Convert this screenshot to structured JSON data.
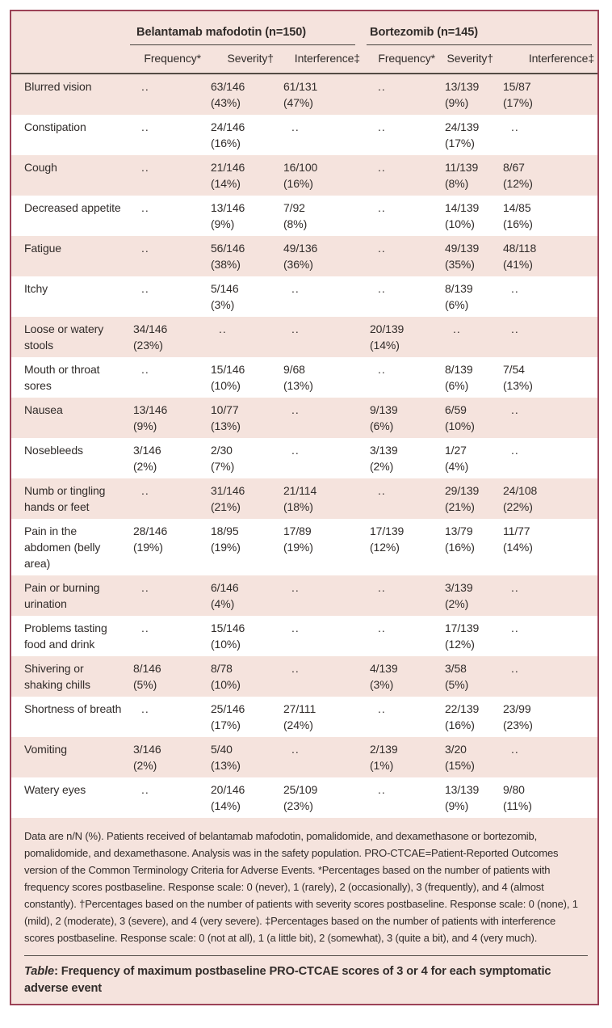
{
  "colors": {
    "frame_border": "#9c4257",
    "row_pink": "#f5e3dd",
    "row_white": "#ffffff",
    "rule_dark": "#544b44"
  },
  "table": {
    "group_headers": [
      {
        "label": "Belantamab mafodotin (n=150)"
      },
      {
        "label": "Bortezomib (n=145)"
      }
    ],
    "column_headers": [
      "Frequency*",
      "Severity†",
      "Interference‡",
      "Frequency*",
      "Severity†",
      "Interference‡"
    ],
    "no_data_marker": "..",
    "rows": [
      {
        "label": "Blurred vision",
        "cells": [
          {
            "v": "..",
            "p": ""
          },
          {
            "v": "63/146",
            "p": "(43%)"
          },
          {
            "v": "61/131",
            "p": "(47%)"
          },
          {
            "v": "..",
            "p": ""
          },
          {
            "v": "13/139",
            "p": "(9%)"
          },
          {
            "v": "15/87",
            "p": "(17%)"
          }
        ]
      },
      {
        "label": "Constipation",
        "cells": [
          {
            "v": "..",
            "p": ""
          },
          {
            "v": "24/146",
            "p": "(16%)"
          },
          {
            "v": "..",
            "p": ""
          },
          {
            "v": "..",
            "p": ""
          },
          {
            "v": "24/139",
            "p": "(17%)"
          },
          {
            "v": "..",
            "p": ""
          }
        ]
      },
      {
        "label": "Cough",
        "cells": [
          {
            "v": "..",
            "p": ""
          },
          {
            "v": "21/146",
            "p": "(14%)"
          },
          {
            "v": "16/100",
            "p": "(16%)"
          },
          {
            "v": "..",
            "p": ""
          },
          {
            "v": "11/139",
            "p": "(8%)"
          },
          {
            "v": "8/67",
            "p": "(12%)"
          }
        ]
      },
      {
        "label": "Decreased appetite",
        "cells": [
          {
            "v": "..",
            "p": ""
          },
          {
            "v": "13/146",
            "p": "(9%)"
          },
          {
            "v": "7/92",
            "p": "(8%)"
          },
          {
            "v": "..",
            "p": ""
          },
          {
            "v": "14/139",
            "p": "(10%)"
          },
          {
            "v": "14/85",
            "p": "(16%)"
          }
        ]
      },
      {
        "label": "Fatigue",
        "cells": [
          {
            "v": "..",
            "p": ""
          },
          {
            "v": "56/146",
            "p": "(38%)"
          },
          {
            "v": "49/136",
            "p": "(36%)"
          },
          {
            "v": "..",
            "p": ""
          },
          {
            "v": "49/139",
            "p": "(35%)"
          },
          {
            "v": "48/118",
            "p": "(41%)"
          }
        ]
      },
      {
        "label": "Itchy",
        "cells": [
          {
            "v": "..",
            "p": ""
          },
          {
            "v": "5/146",
            "p": "(3%)"
          },
          {
            "v": "..",
            "p": ""
          },
          {
            "v": "..",
            "p": ""
          },
          {
            "v": "8/139",
            "p": "(6%)"
          },
          {
            "v": "..",
            "p": ""
          }
        ]
      },
      {
        "label": "Loose or watery stools",
        "cells": [
          {
            "v": "34/146",
            "p": "(23%)"
          },
          {
            "v": "..",
            "p": ""
          },
          {
            "v": "..",
            "p": ""
          },
          {
            "v": "20/139",
            "p": "(14%)"
          },
          {
            "v": "..",
            "p": ""
          },
          {
            "v": "..",
            "p": ""
          }
        ]
      },
      {
        "label": "Mouth or throat sores",
        "cells": [
          {
            "v": "..",
            "p": ""
          },
          {
            "v": "15/146",
            "p": "(10%)"
          },
          {
            "v": "9/68",
            "p": "(13%)"
          },
          {
            "v": "..",
            "p": ""
          },
          {
            "v": "8/139",
            "p": "(6%)"
          },
          {
            "v": "7/54",
            "p": "(13%)"
          }
        ]
      },
      {
        "label": "Nausea",
        "cells": [
          {
            "v": "13/146",
            "p": "(9%)"
          },
          {
            "v": "10/77",
            "p": "(13%)"
          },
          {
            "v": "..",
            "p": ""
          },
          {
            "v": "9/139",
            "p": "(6%)"
          },
          {
            "v": "6/59",
            "p": "(10%)"
          },
          {
            "v": "..",
            "p": ""
          }
        ]
      },
      {
        "label": "Nosebleeds",
        "cells": [
          {
            "v": "3/146",
            "p": "(2%)"
          },
          {
            "v": "2/30",
            "p": "(7%)"
          },
          {
            "v": "..",
            "p": ""
          },
          {
            "v": "3/139",
            "p": "(2%)"
          },
          {
            "v": "1/27",
            "p": "(4%)"
          },
          {
            "v": "..",
            "p": ""
          }
        ]
      },
      {
        "label": "Numb or tingling hands or feet",
        "cells": [
          {
            "v": "..",
            "p": ""
          },
          {
            "v": "31/146",
            "p": "(21%)"
          },
          {
            "v": "21/114",
            "p": "(18%)"
          },
          {
            "v": "..",
            "p": ""
          },
          {
            "v": "29/139",
            "p": "(21%)"
          },
          {
            "v": "24/108",
            "p": "(22%)"
          }
        ]
      },
      {
        "label": "Pain in the abdomen (belly area)",
        "cells": [
          {
            "v": "28/146",
            "p": "(19%)"
          },
          {
            "v": "18/95",
            "p": "(19%)"
          },
          {
            "v": "17/89",
            "p": "(19%)"
          },
          {
            "v": "17/139",
            "p": "(12%)"
          },
          {
            "v": "13/79",
            "p": "(16%)"
          },
          {
            "v": "11/77",
            "p": "(14%)"
          }
        ]
      },
      {
        "label": "Pain or burning urination",
        "cells": [
          {
            "v": "..",
            "p": ""
          },
          {
            "v": "6/146",
            "p": "(4%)"
          },
          {
            "v": "..",
            "p": ""
          },
          {
            "v": "..",
            "p": ""
          },
          {
            "v": "3/139",
            "p": "(2%)"
          },
          {
            "v": "..",
            "p": ""
          }
        ]
      },
      {
        "label": "Problems tasting food and drink",
        "cells": [
          {
            "v": "..",
            "p": ""
          },
          {
            "v": "15/146",
            "p": "(10%)"
          },
          {
            "v": "..",
            "p": ""
          },
          {
            "v": "..",
            "p": ""
          },
          {
            "v": "17/139",
            "p": "(12%)"
          },
          {
            "v": "..",
            "p": ""
          }
        ]
      },
      {
        "label": "Shivering or shaking chills",
        "cells": [
          {
            "v": "8/146",
            "p": "(5%)"
          },
          {
            "v": "8/78",
            "p": "(10%)"
          },
          {
            "v": "..",
            "p": ""
          },
          {
            "v": "4/139",
            "p": "(3%)"
          },
          {
            "v": "3/58",
            "p": "(5%)"
          },
          {
            "v": "..",
            "p": ""
          }
        ]
      },
      {
        "label": "Shortness of breath",
        "cells": [
          {
            "v": "..",
            "p": ""
          },
          {
            "v": "25/146",
            "p": "(17%)"
          },
          {
            "v": "27/111",
            "p": "(24%)"
          },
          {
            "v": "..",
            "p": ""
          },
          {
            "v": "22/139",
            "p": "(16%)"
          },
          {
            "v": "23/99",
            "p": "(23%)"
          }
        ]
      },
      {
        "label": "Vomiting",
        "cells": [
          {
            "v": "3/146",
            "p": "(2%)"
          },
          {
            "v": "5/40",
            "p": "(13%)"
          },
          {
            "v": "..",
            "p": ""
          },
          {
            "v": "2/139",
            "p": "(1%)"
          },
          {
            "v": "3/20",
            "p": "(15%)"
          },
          {
            "v": "..",
            "p": ""
          }
        ]
      },
      {
        "label": "Watery eyes",
        "cells": [
          {
            "v": "..",
            "p": ""
          },
          {
            "v": "20/146",
            "p": "(14%)"
          },
          {
            "v": "25/109",
            "p": "(23%)"
          },
          {
            "v": "..",
            "p": ""
          },
          {
            "v": "13/139",
            "p": "(9%)"
          },
          {
            "v": "9/80",
            "p": "(11%)"
          }
        ]
      }
    ]
  },
  "footnote": "Data are n/N (%). Patients received of belantamab mafodotin, pomalidomide, and dexamethasone or bortezomib, pomalidomide, and dexamethasone. Analysis was in the safety population. PRO-CTCAE=Patient-Reported Outcomes version of the Common Terminology Criteria for Adverse Events. *Percentages based on the number of patients with frequency scores postbaseline. Response scale: 0 (never), 1 (rarely), 2 (occasionally), 3 (frequently), and 4 (almost constantly). †Percentages based on the number of patients with severity scores postbaseline. Response scale: 0 (none), 1 (mild), 2 (moderate), 3 (severe), and 4 (very severe). ‡Percentages based on the number of patients with interference scores postbaseline. Response scale: 0 (not at all), 1 (a little bit), 2 (somewhat), 3 (quite a bit), and 4 (very much).",
  "caption": {
    "prefix": "Table",
    "rest": ": Frequency of maximum postbaseline PRO-CTCAE scores of 3 or 4 for each symptomatic adverse event"
  }
}
